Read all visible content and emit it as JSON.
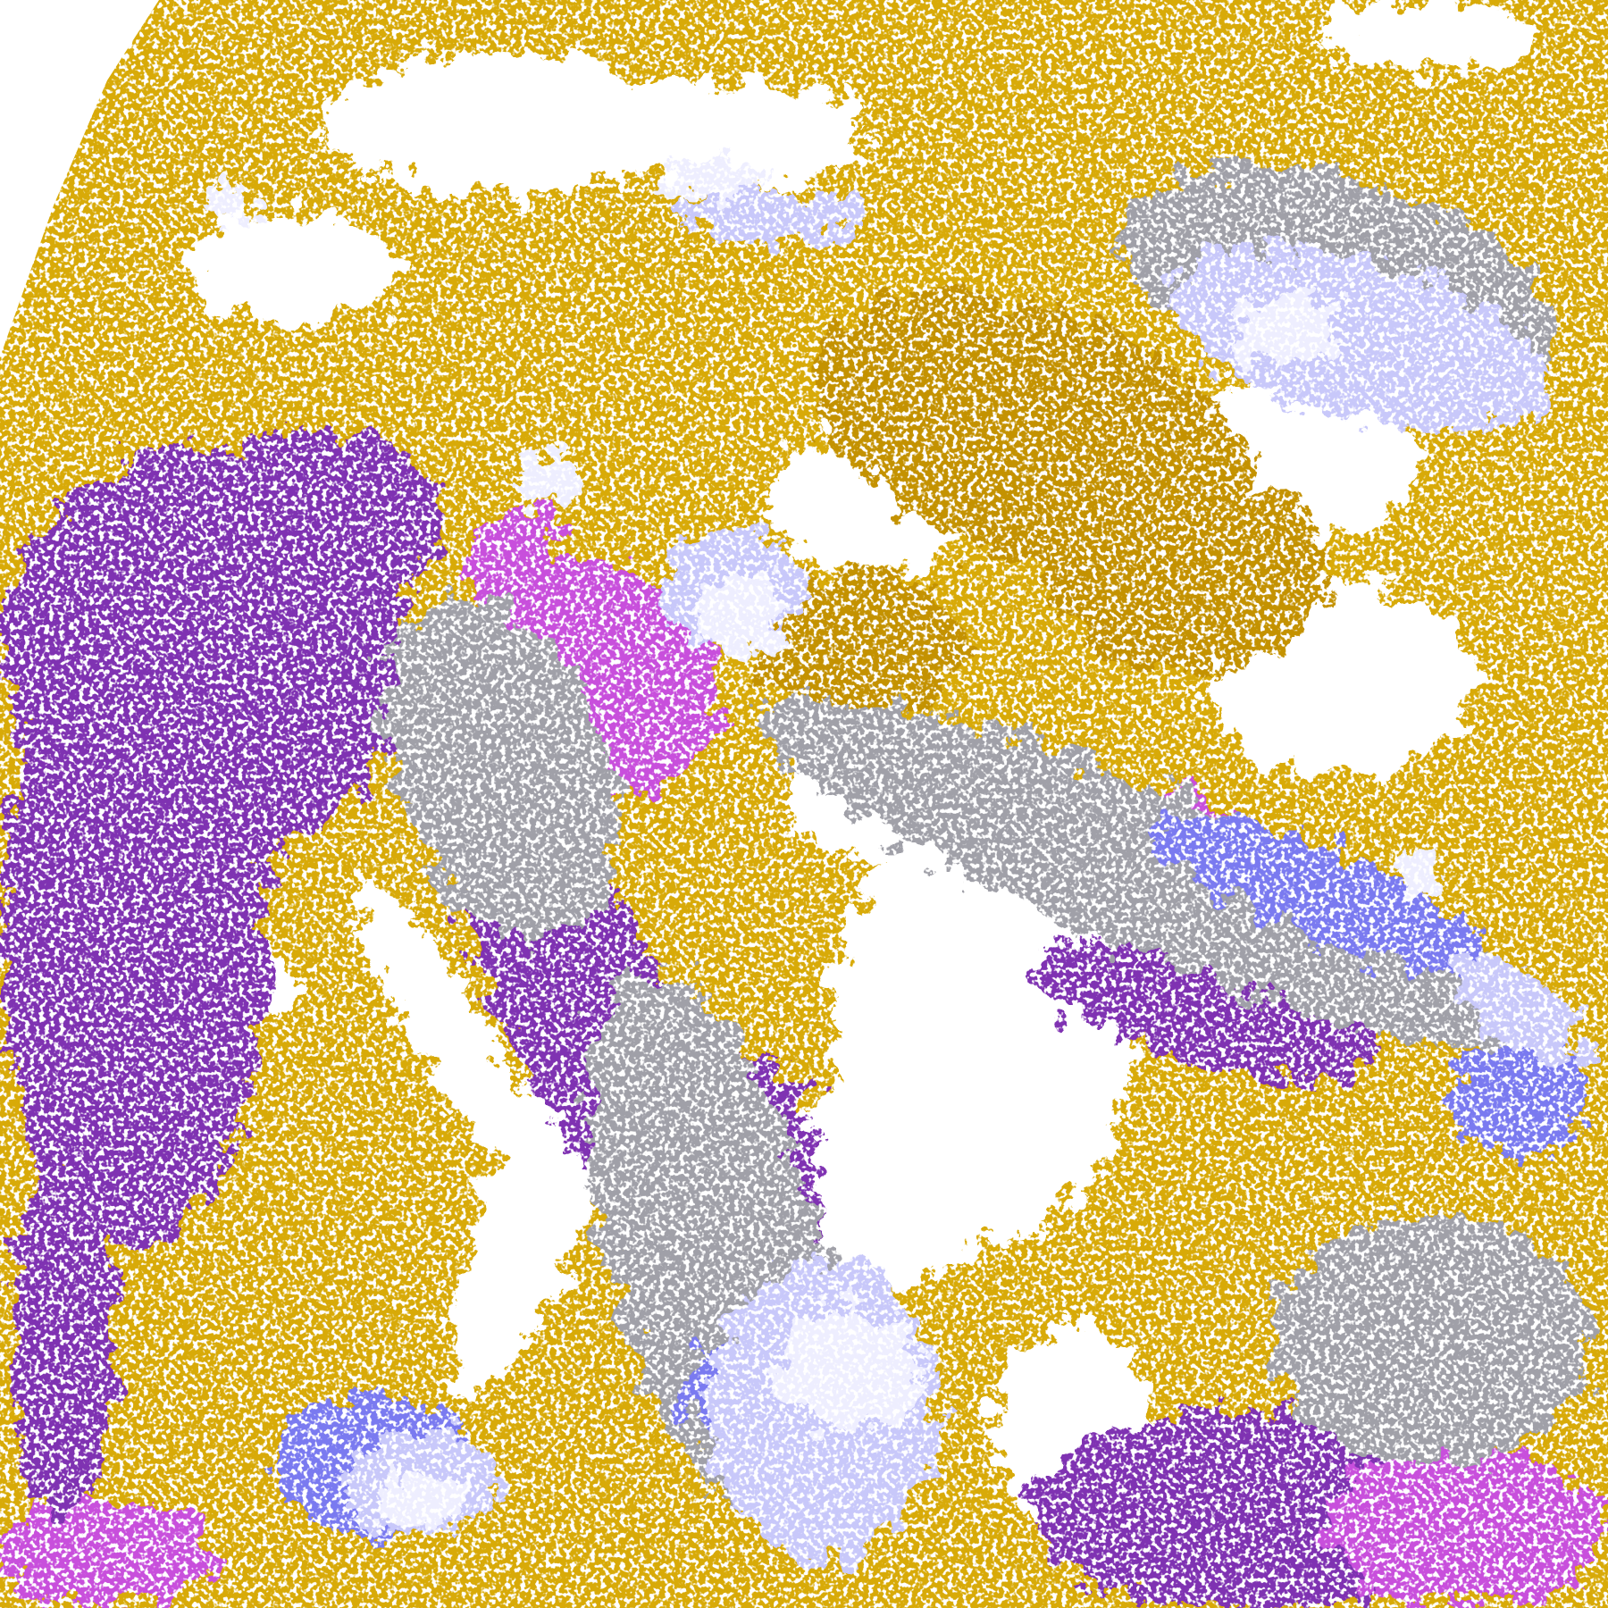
{
  "map": {
    "palette": {
      "clear": "#ffffff",
      "gold": "#d8aa08",
      "dark_gold": "#c49200",
      "purple": "#7f30b2",
      "magenta": "#c850dc",
      "gray": "#a0a0a8",
      "blue": "#7a7af0",
      "lavender": "#c8c8fa",
      "pale": "#eeeeff"
    }
  }
}
